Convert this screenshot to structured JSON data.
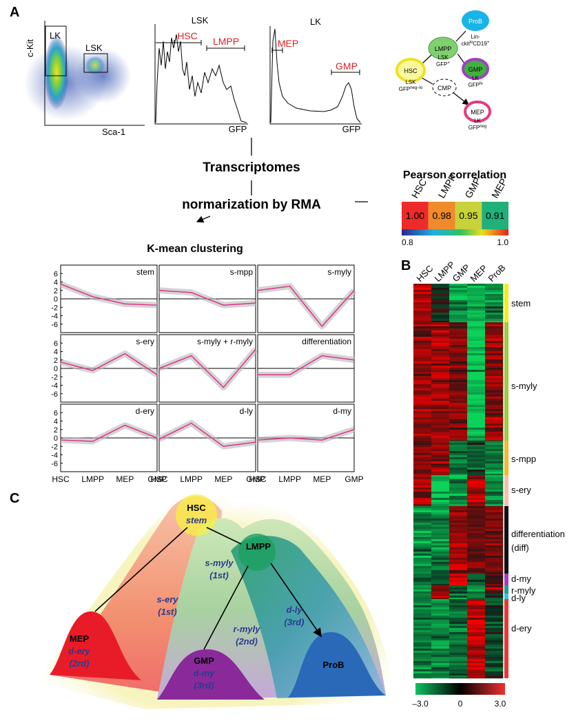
{
  "panel_a": {
    "label": "A",
    "flow_plot": {
      "y_label": "c-Kit",
      "x_label": "Sca-1",
      "gates": [
        "LK",
        "LSK"
      ]
    },
    "lsk_hist": {
      "title": "LSK",
      "x_label": "GFP",
      "gates": [
        "HSC",
        "LMPP"
      ]
    },
    "lk_hist": {
      "title": "LK",
      "x_label": "GFP",
      "gates": [
        "MEP",
        "GMP"
      ]
    },
    "hierarchy": {
      "nodes": [
        {
          "label": "ProB",
          "lines": [
            [
              {
                "text": "Lin-"
              }
            ],
            [
              {
                "text": "ckit"
              },
              {
                "sup": "lo"
              },
              {
                "text": "CD19"
              },
              {
                "sup": "+"
              }
            ]
          ]
        },
        {
          "label": "LMPP",
          "lines": [
            [
              {
                "text": "LSK"
              }
            ],
            [
              {
                "text": "GFP"
              },
              {
                "sup": "+"
              }
            ]
          ]
        },
        {
          "label": "HSC",
          "lines": [
            [
              {
                "text": "LSK"
              }
            ],
            [
              {
                "text": "GFP"
              },
              {
                "sup": "neg–lo"
              }
            ]
          ]
        },
        {
          "label": "CMP"
        },
        {
          "label": "GMP",
          "lines": [
            [
              {
                "text": "LK"
              }
            ],
            [
              {
                "text": "GFP"
              },
              {
                "sup": "hi"
              }
            ]
          ]
        },
        {
          "label": "MEP",
          "lines": [
            [
              {
                "text": "LK"
              }
            ],
            [
              {
                "text": "GFP"
              },
              {
                "sup": "neg"
              }
            ]
          ]
        }
      ]
    },
    "flow": {
      "step1": "Transcriptomes",
      "step2": "normarization by RMA"
    },
    "pearson": {
      "title": "Pearson correlation",
      "labels": [
        "HSC",
        "LMPP",
        "GMP",
        "MEP"
      ],
      "values": [
        "1.00",
        "0.98",
        "0.95",
        "0.91"
      ],
      "colors": [
        "#ee2b2b",
        "#f08a2a",
        "#c8d23a",
        "#21b07a"
      ],
      "scale_min": "0.8",
      "scale_max": "1.0"
    },
    "kmeans": {
      "title": "K-mean clustering",
      "yticks": [
        "6",
        "4",
        "2",
        "0",
        "-2",
        "-4",
        "-6"
      ],
      "ylim": [
        -8,
        8
      ],
      "xticks": [
        "HSC",
        "LMPP",
        "MEP",
        "GMP"
      ],
      "clusters": [
        {
          "name": "stem",
          "mean": [
            3.5,
            0.5,
            -1.2,
            -1.5
          ]
        },
        {
          "name": "s-mpp",
          "mean": [
            2,
            1.5,
            -1.5,
            -1
          ]
        },
        {
          "name": "s-myly",
          "mean": [
            2,
            3,
            -6.5,
            2
          ]
        },
        {
          "name": "s-ery",
          "mean": [
            1.5,
            -0.5,
            3.5,
            -1.5
          ]
        },
        {
          "name": "s-myly + r-myly",
          "mean": [
            0,
            3,
            -4.5,
            4.5
          ]
        },
        {
          "name": "differentiation",
          "mean": [
            -1.5,
            -1.5,
            3,
            2
          ]
        },
        {
          "name": "d-ery",
          "mean": [
            -0.5,
            -0.8,
            3,
            0
          ]
        },
        {
          "name": "d-ly",
          "mean": [
            -0.3,
            3.5,
            -2,
            -1
          ]
        },
        {
          "name": "d-my",
          "mean": [
            -0.5,
            0,
            -0.5,
            2
          ]
        }
      ]
    }
  },
  "panel_b": {
    "label": "B",
    "columns": [
      "HSC",
      "LMPP",
      "GMP",
      "MEP",
      "ProB"
    ],
    "clusters": [
      {
        "lines": [
          "stem"
        ]
      },
      {
        "lines": [
          "s-myly"
        ]
      },
      {
        "lines": [
          "s-mpp"
        ]
      },
      {
        "lines": [
          "s-ery"
        ]
      },
      {
        "lines": [
          "differentiation",
          "(diff)"
        ]
      },
      {
        "lines": [
          "d-my"
        ]
      },
      {
        "lines": [
          "r-myly"
        ]
      },
      {
        "lines": [
          "d-ly"
        ]
      },
      {
        "lines": [
          "d-ery"
        ]
      }
    ],
    "scale_labels": [
      "–3.0",
      "0",
      "3.0"
    ]
  },
  "panel_c": {
    "label": "C",
    "nodes": [
      {
        "name": "HSC",
        "lines": [
          "stem"
        ]
      },
      {
        "name": "LMPP",
        "lines": [
          "s-myly",
          "(1st)"
        ]
      },
      {
        "name": "MEP",
        "lines": [
          "d-ery",
          "(2rd)"
        ]
      },
      {
        "name": "GMP",
        "lines": [
          "d-my",
          "(3rd)"
        ]
      },
      {
        "name": "ProB"
      }
    ],
    "edges": [
      [
        "s-ery",
        "(1st)"
      ],
      [
        "r-myly",
        "(2nd)"
      ],
      [
        "d-ly",
        "(3rd)"
      ]
    ]
  }
}
